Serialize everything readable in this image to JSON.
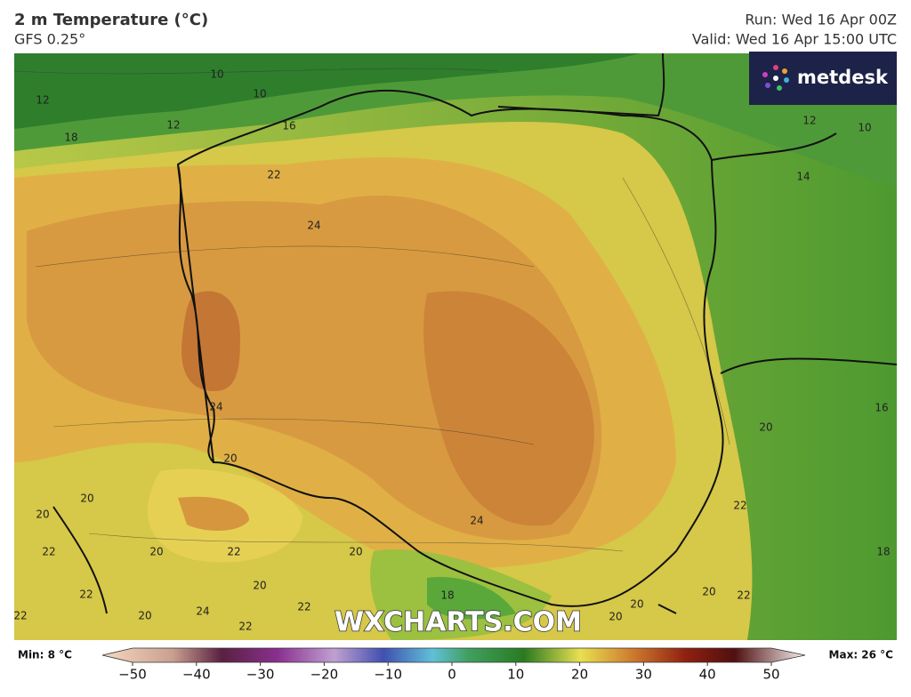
{
  "header": {
    "title": "2 m Temperature (°C)",
    "model": "GFS 0.25°",
    "run": "Run: Wed 16 Apr 00Z",
    "valid": "Valid: Wed 16 Apr 15:00 UTC"
  },
  "logo": {
    "text": "metdesk"
  },
  "watermark": "WXCHARTS.COM",
  "contour_labels": [
    10,
    10,
    12,
    18,
    12,
    16,
    22,
    24,
    24,
    20,
    20,
    20,
    22,
    20,
    22,
    20,
    20,
    22,
    20,
    24,
    22,
    22,
    24,
    18,
    20,
    20,
    20,
    22,
    22,
    20,
    16,
    18,
    14,
    12,
    10,
    22
  ],
  "colorbar": {
    "min_label": "Min: 8 °C",
    "max_label": "Max: 26 °C",
    "range": [
      -50,
      50
    ],
    "ticks": [
      {
        "value": -50,
        "label": "−50"
      },
      {
        "value": -40,
        "label": "−40"
      },
      {
        "value": -30,
        "label": "−30"
      },
      {
        "value": -20,
        "label": "−20"
      },
      {
        "value": -10,
        "label": "−10"
      },
      0,
      10,
      20,
      30,
      40,
      50
    ]
  }
}
